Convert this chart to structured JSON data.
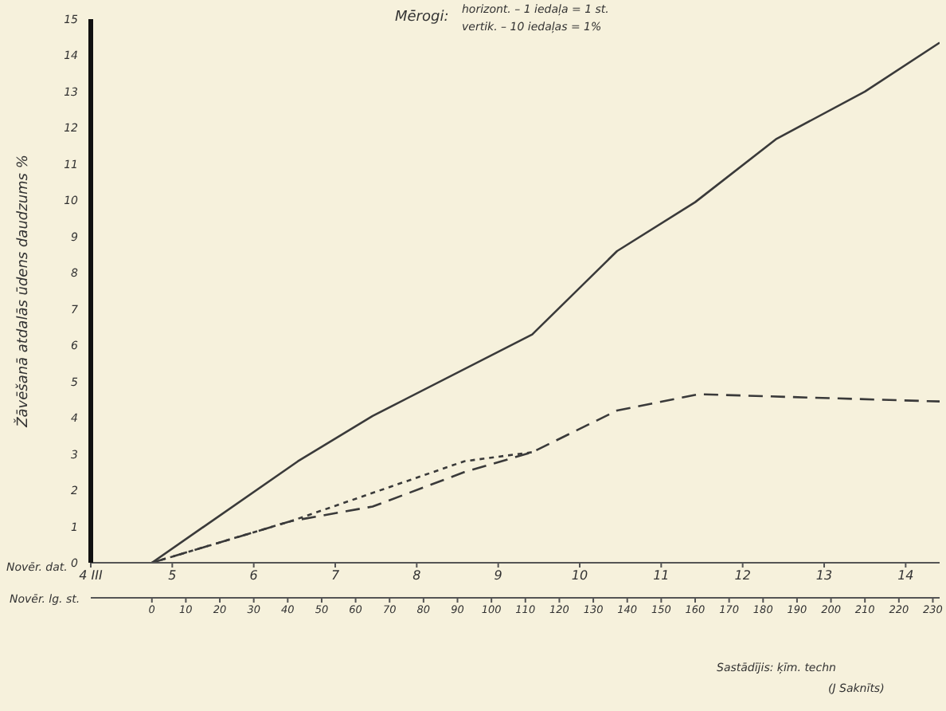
{
  "chart_data": {
    "type": "line",
    "ylabel": "Žāvēšanā atdalās ūdens daudzums %",
    "xlabel": "Novēr. lg. st.",
    "x2label": "Novēr. dat.",
    "xlim": [
      -18,
      232
    ],
    "xticks": [
      0,
      10,
      20,
      30,
      40,
      50,
      60,
      70,
      80,
      90,
      100,
      110,
      120,
      130,
      140,
      150,
      160,
      170,
      180,
      190,
      200,
      210,
      220,
      230
    ],
    "x2lim": [
      4,
      14.417
    ],
    "x2ticks": [
      {
        "value": 4,
        "label": "4 III"
      },
      5,
      6,
      7,
      8,
      9,
      10,
      11,
      12,
      13,
      14
    ],
    "ylim": [
      0,
      15
    ],
    "yticks": [
      0,
      1,
      2,
      3,
      4,
      5,
      6,
      7,
      8,
      9,
      10,
      11,
      12,
      13,
      14,
      15
    ],
    "marker": "none",
    "series": [
      {
        "color": "#3a3a3a",
        "line_style": "solid",
        "x": [
          0,
          43,
          65,
          112,
          137,
          160,
          184,
          210,
          232
        ],
        "values": [
          0,
          2.8,
          4.05,
          6.3,
          8.6,
          9.95,
          11.7,
          13.0,
          14.35
        ]
      },
      {
        "color": "#3a3a3a",
        "line_style": "dashed",
        "x": [
          0,
          41,
          65,
          92,
          112,
          137,
          161,
          232
        ],
        "values": [
          0,
          1.15,
          1.55,
          2.5,
          3.05,
          4.2,
          4.65,
          4.45
        ]
      },
      {
        "color": "#3a3a3a",
        "line_style": "dotted",
        "x": [
          0,
          41,
          92,
          112
        ],
        "values": [
          0,
          1.15,
          2.8,
          3.05
        ]
      }
    ],
    "annotations": [
      "Mērogi:",
      "horizont. – 1 iedaļa = 1 st.",
      "vertik. – 10 iedaļas = 1%",
      "Sastādījis: ķīm. techn",
      "(J Saknīts)"
    ]
  }
}
